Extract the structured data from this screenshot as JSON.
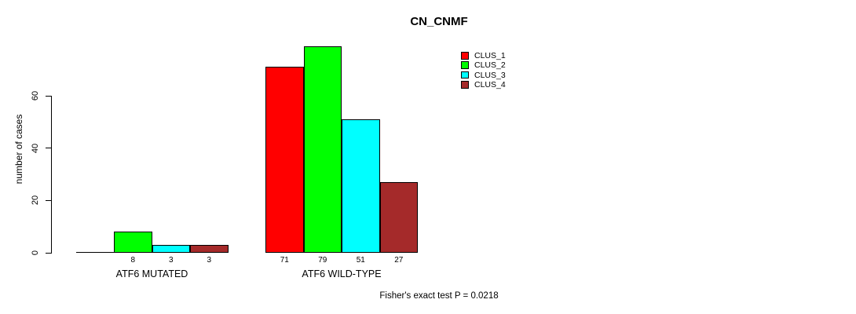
{
  "chart_data": {
    "type": "bar",
    "title": "CN_CNMF",
    "ylabel": "number of cases",
    "xlabel": "",
    "yticks": [
      0,
      20,
      40,
      60
    ],
    "ylim": [
      0,
      79
    ],
    "grid": false,
    "legend_position": "top-right",
    "categories": [
      "ATF6 MUTATED",
      "ATF6 WILD-TYPE"
    ],
    "series": [
      {
        "name": "CLUS_1",
        "color": "#FF0000",
        "values": [
          0,
          71
        ]
      },
      {
        "name": "CLUS_2",
        "color": "#00FF00",
        "values": [
          8,
          79
        ]
      },
      {
        "name": "CLUS_3",
        "color": "#00FFFF",
        "values": [
          3,
          51
        ]
      },
      {
        "name": "CLUS_4",
        "color": "#A52A2A",
        "values": [
          3,
          27
        ]
      }
    ],
    "bar_value_labels_shown": true,
    "zero_values_unlabeled": true,
    "annotation": "Fisher's exact test P = 0.0218"
  },
  "colors": {
    "background": "#FFFFFF",
    "axis": "#000000",
    "text": "#000000"
  }
}
